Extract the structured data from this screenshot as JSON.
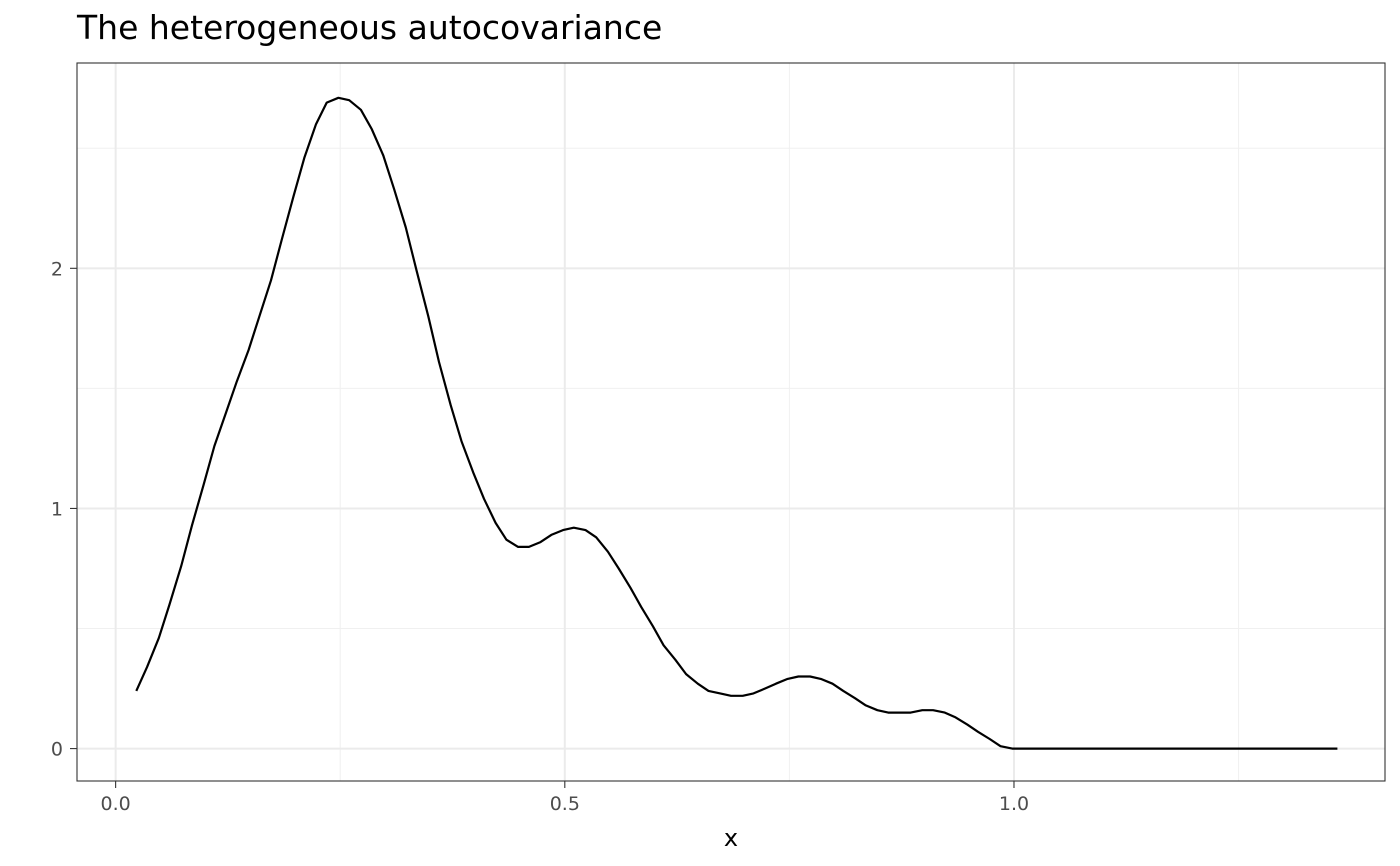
{
  "chart_data": {
    "type": "line",
    "title": "The heterogeneous autocovariance",
    "xlabel": "x",
    "ylabel": "",
    "xlim": [
      -0.043,
      1.413
    ],
    "ylim": [
      -0.135,
      2.855
    ],
    "x_ticks": [
      {
        "value": 0.0,
        "label": "0.0"
      },
      {
        "value": 0.5,
        "label": "0.5"
      },
      {
        "value": 1.0,
        "label": "1.0"
      }
    ],
    "y_ticks": [
      {
        "value": 0,
        "label": "0"
      },
      {
        "value": 1,
        "label": "1"
      },
      {
        "value": 2,
        "label": "2"
      }
    ],
    "x_minor": [
      0.25,
      0.75,
      1.25
    ],
    "y_minor": [
      0.5,
      1.5,
      2.5
    ],
    "grid": true,
    "legend": "none",
    "line_color": "#000000",
    "series": [
      {
        "x": [
          0.023,
          0.035,
          0.048,
          0.06,
          0.073,
          0.085,
          0.098,
          0.11,
          0.123,
          0.135,
          0.148,
          0.16,
          0.173,
          0.185,
          0.198,
          0.21,
          0.223,
          0.235,
          0.248,
          0.26,
          0.273,
          0.285,
          0.298,
          0.31,
          0.323,
          0.335,
          0.348,
          0.36,
          0.373,
          0.385,
          0.398,
          0.41,
          0.423,
          0.435,
          0.448,
          0.46,
          0.473,
          0.485,
          0.498,
          0.51,
          0.523,
          0.535,
          0.548,
          0.56,
          0.573,
          0.585,
          0.598,
          0.61,
          0.623,
          0.635,
          0.648,
          0.66,
          0.673,
          0.685,
          0.698,
          0.71,
          0.723,
          0.735,
          0.748,
          0.76,
          0.773,
          0.785,
          0.798,
          0.81,
          0.823,
          0.835,
          0.848,
          0.86,
          0.873,
          0.885,
          0.898,
          0.91,
          0.923,
          0.935,
          0.948,
          0.96,
          0.973,
          0.985,
          0.998,
          1.01,
          1.023,
          1.035,
          1.048,
          1.06,
          1.073,
          1.085,
          1.098,
          1.11,
          1.123,
          1.135,
          1.148,
          1.16,
          1.173,
          1.185,
          1.198,
          1.21,
          1.223,
          1.235,
          1.248,
          1.26,
          1.273,
          1.285,
          1.298,
          1.31,
          1.323,
          1.335,
          1.348,
          1.36
        ],
        "y": [
          0.24,
          0.34,
          0.46,
          0.6,
          0.76,
          0.93,
          1.1,
          1.26,
          1.4,
          1.53,
          1.66,
          1.8,
          1.95,
          2.12,
          2.3,
          2.46,
          2.6,
          2.69,
          2.71,
          2.7,
          2.66,
          2.58,
          2.47,
          2.33,
          2.17,
          1.99,
          1.8,
          1.61,
          1.43,
          1.28,
          1.15,
          1.04,
          0.94,
          0.87,
          0.84,
          0.84,
          0.86,
          0.89,
          0.91,
          0.92,
          0.91,
          0.88,
          0.82,
          0.75,
          0.67,
          0.59,
          0.51,
          0.43,
          0.37,
          0.31,
          0.27,
          0.24,
          0.23,
          0.22,
          0.22,
          0.23,
          0.25,
          0.27,
          0.29,
          0.3,
          0.3,
          0.29,
          0.27,
          0.24,
          0.21,
          0.18,
          0.16,
          0.15,
          0.15,
          0.15,
          0.16,
          0.16,
          0.15,
          0.13,
          0.1,
          0.07,
          0.04,
          0.01,
          0.0,
          0.0,
          0.0,
          0.0,
          0.0,
          0.0,
          0.0,
          0.0,
          0.0,
          0.0,
          0.0,
          0.0,
          0.0,
          0.0,
          0.0,
          0.0,
          0.0,
          0.0,
          0.0,
          0.0,
          0.0,
          0.0,
          0.0,
          0.0,
          0.0,
          0.0,
          0.0,
          0.0,
          0.0,
          0.0
        ]
      }
    ]
  }
}
